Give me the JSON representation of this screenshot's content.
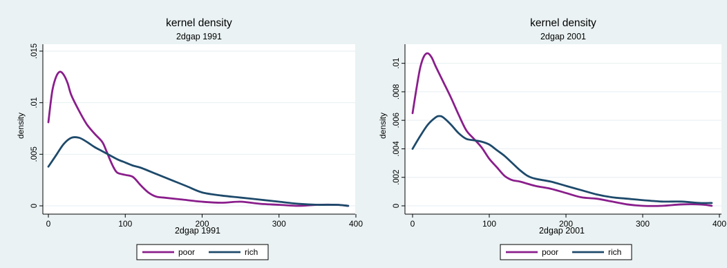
{
  "chart_data": [
    {
      "type": "line",
      "title": "kernel density",
      "subtitle": "2dgap 1991",
      "xlabel": "2dgap 1991",
      "ylabel": "density",
      "xlim": [
        0,
        400
      ],
      "ylim": [
        0,
        0.015
      ],
      "xticks": [
        0,
        100,
        200,
        300,
        400
      ],
      "yticks": [
        0,
        0.005,
        0.01,
        0.015
      ],
      "ytick_labels": [
        "0",
        ".005",
        ".01",
        ".015"
      ],
      "grid": true,
      "legend": "bottom",
      "series": [
        {
          "name": "poor",
          "color": "#8a1e8c",
          "x": [
            0,
            5,
            10,
            15,
            20,
            25,
            30,
            40,
            50,
            60,
            70,
            75,
            80,
            85,
            90,
            100,
            110,
            120,
            130,
            140,
            150,
            175,
            200,
            225,
            250,
            275,
            300,
            325,
            350,
            375,
            390
          ],
          "y": [
            0.0081,
            0.0111,
            0.0125,
            0.013,
            0.0127,
            0.0119,
            0.0107,
            0.0092,
            0.0079,
            0.007,
            0.0062,
            0.0054,
            0.0045,
            0.0037,
            0.0032,
            0.003,
            0.0028,
            0.002,
            0.0013,
            0.0009,
            0.0008,
            0.0006,
            0.0004,
            0.0003,
            0.0004,
            0.0002,
            0.0001,
            0.0,
            0.0001,
            0.0001,
            0.0
          ]
        },
        {
          "name": "rich",
          "color": "#1e4a6b",
          "x": [
            0,
            10,
            20,
            30,
            40,
            50,
            60,
            70,
            80,
            90,
            100,
            110,
            120,
            140,
            160,
            180,
            200,
            225,
            250,
            275,
            300,
            325,
            350,
            375,
            390
          ],
          "y": [
            0.0038,
            0.0049,
            0.006,
            0.0066,
            0.0066,
            0.0062,
            0.0057,
            0.0053,
            0.0049,
            0.0045,
            0.0042,
            0.0039,
            0.0037,
            0.0031,
            0.0025,
            0.0019,
            0.0013,
            0.001,
            0.0008,
            0.0006,
            0.0004,
            0.0002,
            0.0001,
            0.0001,
            0.0
          ]
        }
      ]
    },
    {
      "type": "line",
      "title": "kernel density",
      "subtitle": "2dgap 2001",
      "xlabel": "2dgap 2001",
      "ylabel": "density",
      "xlim": [
        0,
        400
      ],
      "ylim": [
        0,
        0.011
      ],
      "xticks": [
        0,
        100,
        200,
        300,
        400
      ],
      "yticks": [
        0,
        0.002,
        0.004,
        0.006,
        0.008,
        0.01
      ],
      "ytick_labels": [
        "0",
        ".002",
        ".004",
        ".006",
        ".008",
        ".01"
      ],
      "grid": true,
      "legend": "bottom",
      "series": [
        {
          "name": "poor",
          "color": "#8a1e8c",
          "x": [
            0,
            5,
            10,
            15,
            20,
            25,
            30,
            40,
            50,
            60,
            70,
            80,
            90,
            100,
            110,
            120,
            130,
            140,
            160,
            180,
            200,
            220,
            240,
            260,
            280,
            300,
            325,
            350,
            375,
            390
          ],
          "y": [
            0.0065,
            0.0082,
            0.0097,
            0.0105,
            0.0107,
            0.0104,
            0.0098,
            0.0087,
            0.0076,
            0.0064,
            0.0053,
            0.0047,
            0.0041,
            0.0033,
            0.0027,
            0.0021,
            0.0018,
            0.0017,
            0.0014,
            0.0012,
            0.0009,
            0.0006,
            0.0005,
            0.0003,
            0.0001,
            0.0,
            0.0,
            0.0001,
            0.0001,
            0.0
          ]
        },
        {
          "name": "rich",
          "color": "#1e4a6b",
          "x": [
            0,
            10,
            20,
            30,
            35,
            40,
            50,
            60,
            70,
            80,
            90,
            100,
            110,
            120,
            130,
            140,
            150,
            160,
            180,
            200,
            220,
            240,
            260,
            280,
            300,
            325,
            350,
            375,
            390
          ],
          "y": [
            0.004,
            0.0049,
            0.0057,
            0.0062,
            0.0063,
            0.0062,
            0.0057,
            0.0051,
            0.0047,
            0.0046,
            0.0045,
            0.0043,
            0.0039,
            0.0035,
            0.003,
            0.0025,
            0.0021,
            0.0019,
            0.0017,
            0.0014,
            0.0011,
            0.0008,
            0.0006,
            0.0005,
            0.0004,
            0.0003,
            0.0003,
            0.0002,
            0.0002
          ]
        }
      ]
    }
  ]
}
